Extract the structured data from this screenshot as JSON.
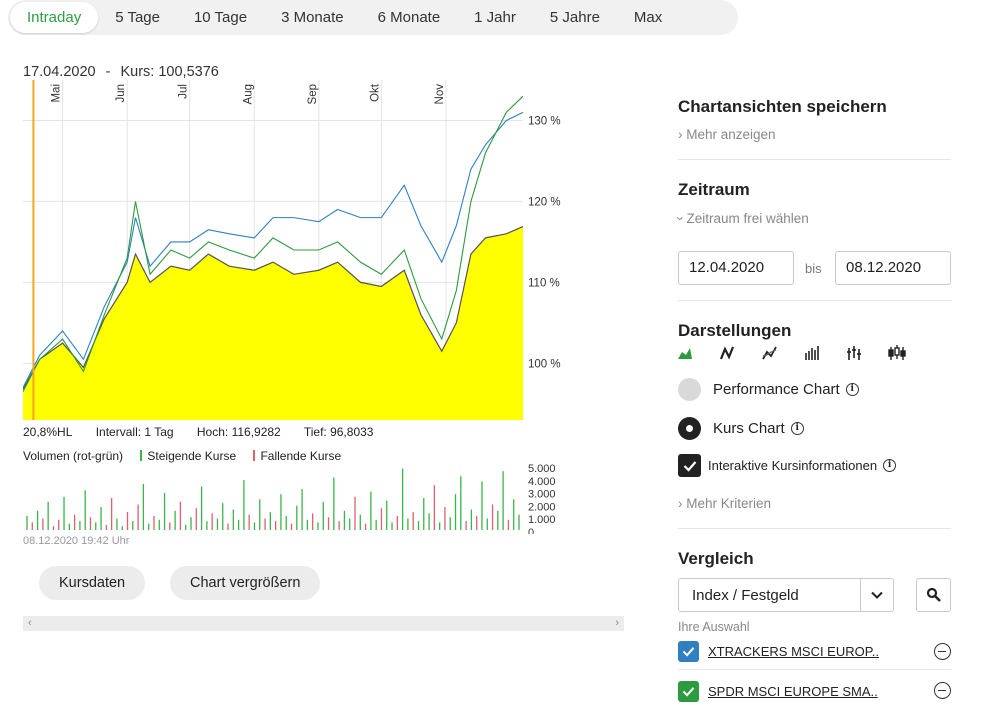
{
  "tabs": [
    "Intraday",
    "5 Tage",
    "10 Tage",
    "3 Monate",
    "6 Monate",
    "1 Jahr",
    "5 Jahre",
    "Max"
  ],
  "active_tab": "Intraday",
  "chart": {
    "header_date": "17.04.2020",
    "header_sep": "-",
    "header_kurs": "Kurs: 100,5376",
    "stats": [
      "20,8%HL",
      "Intervall: 1 Tag",
      "Hoch: 116,9282",
      "Tief: 96,8033"
    ],
    "volume_legend": {
      "label": "Volumen (rot-grün)",
      "up": "Steigende Kurse",
      "down": "Fallende Kurse"
    },
    "timestamp": "08.12.2020 19:42 Uhr",
    "buttons": {
      "kursdaten": "Kursdaten",
      "enlarge": "Chart vergrößern"
    },
    "colors": {
      "area": "#ffff00",
      "area_line": "#555555",
      "series_blue": "#2f7fc1",
      "series_green": "#2e9a3e",
      "cursor": "#f5a623",
      "vol_up": "#3ab54a",
      "vol_down": "#e06070"
    }
  },
  "chart_data": [
    {
      "type": "area",
      "x": [
        "2020-04-12",
        "2020-04-20",
        "2020-05-01",
        "2020-05-11",
        "2020-05-21",
        "2020-06-01",
        "2020-06-05",
        "2020-06-12",
        "2020-06-22",
        "2020-07-01",
        "2020-07-10",
        "2020-07-20",
        "2020-08-01",
        "2020-08-10",
        "2020-08-20",
        "2020-09-01",
        "2020-09-10",
        "2020-09-21",
        "2020-10-01",
        "2020-10-12",
        "2020-10-20",
        "2020-10-30",
        "2020-11-06",
        "2020-11-13",
        "2020-11-20",
        "2020-11-30",
        "2020-12-08"
      ],
      "x_ticks": [
        "Mai",
        "Jun",
        "Jul",
        "Aug",
        "Sep",
        "Okt",
        "Nov"
      ],
      "y_ticks": [
        "100 %",
        "110 %",
        "120 %",
        "130 %"
      ],
      "ylim": [
        93,
        135
      ],
      "series": [
        {
          "values": [
            96.8,
            100.5,
            102.5,
            99.5,
            105.5,
            110,
            113.5,
            110,
            112,
            111.5,
            113.5,
            112,
            111.5,
            112.5,
            111,
            111.5,
            112.5,
            110,
            109.5,
            111.5,
            106,
            101.5,
            105,
            113.5,
            115.5,
            116,
            116.9
          ]
        },
        {
          "values": [
            97,
            101,
            104,
            100.5,
            107,
            112.5,
            118,
            112,
            115,
            115,
            116.5,
            116,
            115.5,
            118,
            118,
            117.5,
            119,
            118,
            118,
            122,
            117,
            112.5,
            117,
            124,
            127,
            130,
            131
          ]
        },
        {
          "values": [
            96.5,
            100.5,
            103,
            99,
            106,
            113,
            120,
            111,
            114,
            113,
            115,
            114,
            113,
            115.5,
            114,
            114,
            115,
            112.5,
            111,
            114,
            108,
            103,
            109,
            120,
            126,
            131,
            133
          ]
        }
      ]
    },
    {
      "type": "bar",
      "ylim": [
        0,
        5000
      ],
      "y_ticks": [
        "5.000",
        "4.000",
        "3.000",
        "2.000",
        "1.000",
        "0"
      ],
      "values": [
        1100,
        600,
        1500,
        900,
        2200,
        300,
        800,
        2600,
        500,
        1200,
        700,
        3100,
        1000,
        600,
        1800,
        400,
        2500,
        900,
        300,
        1400,
        700,
        2000,
        3600,
        500,
        1100,
        800,
        2900,
        600,
        1500,
        2200,
        400,
        1000,
        1700,
        3400,
        700,
        1300,
        900,
        2100,
        500,
        1600,
        800,
        3900,
        1200,
        600,
        2400,
        900,
        1400,
        700,
        2800,
        1100,
        500,
        1900,
        3200,
        800,
        1300,
        600,
        2200,
        1000,
        4100,
        700,
        1500,
        900,
        2600,
        1200,
        500,
        3000,
        800,
        1700,
        2300,
        600,
        1100,
        4800,
        900,
        1400,
        700,
        2500,
        1300,
        3500,
        600,
        1800,
        1000,
        2800,
        4200,
        700,
        1600,
        1100,
        3800,
        900,
        2000,
        1500,
        4600,
        800,
        2400,
        1200
      ],
      "up": [
        1,
        0,
        1,
        0,
        1,
        0,
        0,
        1,
        1,
        0,
        1,
        1,
        0,
        1,
        1,
        0,
        0,
        1,
        1,
        0,
        1,
        0,
        1,
        1,
        0,
        1,
        1,
        0,
        1,
        0,
        1,
        1,
        0,
        1,
        1,
        0,
        1,
        1,
        0,
        1,
        1,
        1,
        0,
        1,
        1,
        0,
        1,
        0,
        1,
        1,
        0,
        1,
        1,
        1,
        0,
        1,
        1,
        0,
        1,
        0,
        1,
        1,
        0,
        1,
        0,
        1,
        1,
        0,
        1,
        1,
        0,
        1,
        1,
        0,
        1,
        1,
        1,
        0,
        1,
        0,
        1,
        1,
        1,
        0,
        1,
        0,
        1,
        1,
        0,
        1,
        1,
        0,
        1,
        1
      ]
    }
  ],
  "panel": {
    "save_title": "Chartansichten speichern",
    "more_show": "Mehr anzeigen",
    "zeitraum_title": "Zeitraum",
    "zeitraum_free": "Zeitraum frei wählen",
    "date_from": "12.04.2020",
    "bis": "bis",
    "date_to": "08.12.2020",
    "darstellungen_title": "Darstellungen",
    "chart_type_icons": [
      "area-chart-icon",
      "line-chart-icon",
      "dual-line-icon",
      "ohlc-bars-icon",
      "hilo-bars-icon",
      "candlestick-icon"
    ],
    "radio_performance": "Performance Chart",
    "radio_kurs": "Kurs Chart",
    "checkbox_interactive": "Interaktive Kursinformationen",
    "more_criteria": "Mehr Kriterien",
    "vergleich_title": "Vergleich",
    "select_value": "Index / Festgeld",
    "ihre_auswahl": "Ihre Auswahl",
    "selections": [
      {
        "name": "XTRACKERS MSCI EUROP..",
        "color": "#2f7fc1"
      },
      {
        "name": "SPDR MSCI EUROPE SMA..",
        "color": "#2e9a3e"
      }
    ]
  }
}
